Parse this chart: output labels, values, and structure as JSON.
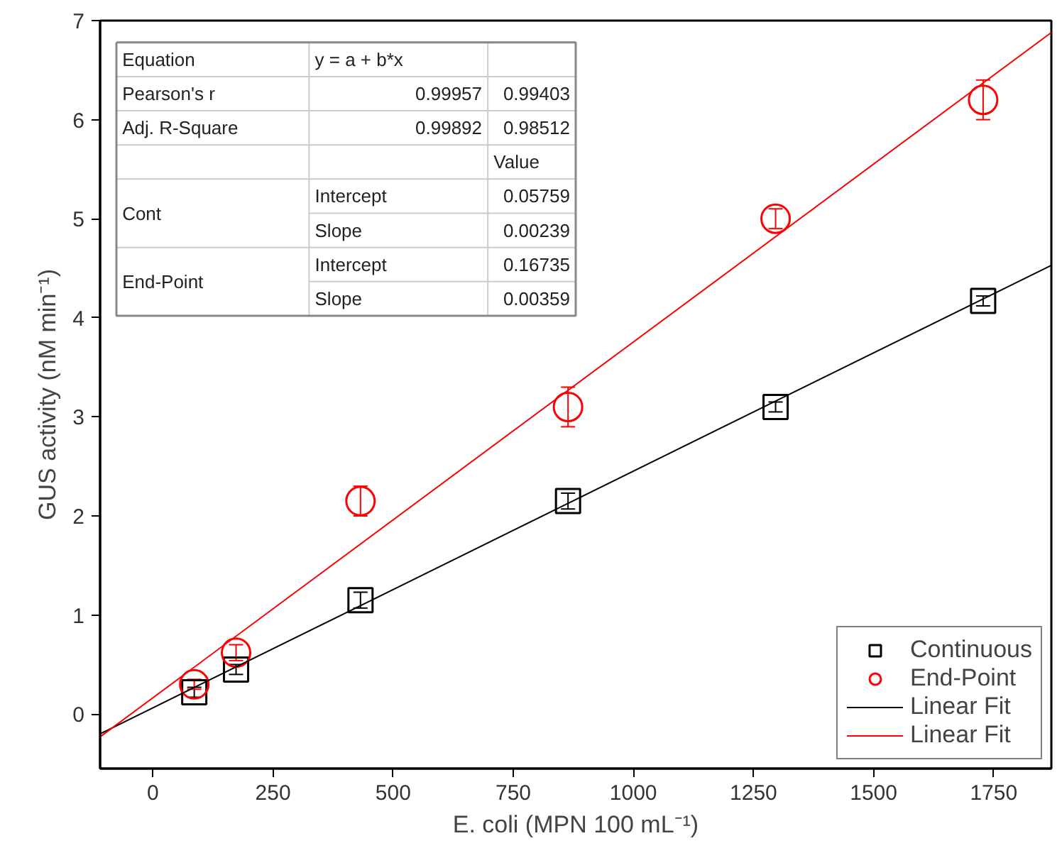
{
  "chart_data": {
    "type": "scatter",
    "xlabel": "E. coli (MPN 100 mL⁻¹)",
    "ylabel": "GUS activity (nM min⁻¹)",
    "xlim": [
      -110,
      1870
    ],
    "ylim": [
      -0.55,
      7
    ],
    "xticks": [
      0,
      250,
      500,
      750,
      1000,
      1250,
      1500,
      1750
    ],
    "yticks": [
      0,
      1,
      2,
      3,
      4,
      5,
      6,
      7
    ],
    "grid": false,
    "legend": "bottom right",
    "series": [
      {
        "name": "Continuous",
        "marker": "square",
        "color": "#000000",
        "x": [
          86,
          173,
          432,
          864,
          1296,
          1728
        ],
        "values": [
          0.22,
          0.45,
          1.15,
          2.15,
          3.1,
          4.17
        ],
        "errors": [
          0.05,
          0.05,
          0.08,
          0.08,
          0.05,
          0.05
        ]
      },
      {
        "name": "End-Point",
        "marker": "circle",
        "color": "#ff0000",
        "x": [
          86,
          173,
          432,
          864,
          1296,
          1728
        ],
        "values": [
          0.3,
          0.62,
          2.15,
          3.1,
          5.0,
          6.2
        ],
        "errors": [
          0.05,
          0.08,
          0.15,
          0.2,
          0.1,
          0.2
        ]
      },
      {
        "name": "Linear Fit",
        "type": "line",
        "color": "#000000",
        "x": [
          -110,
          1870
        ],
        "values": [
          -0.2,
          4.53
        ]
      },
      {
        "name": "Linear Fit",
        "type": "line",
        "color": "#ff0000",
        "x": [
          -110,
          1870
        ],
        "values": [
          -0.23,
          6.88
        ]
      }
    ],
    "annotations": [
      "Equation",
      "y = a + b*x",
      "Pearson's r",
      "0.99957",
      "0.99403",
      "Adj. R-Square",
      "0.99892",
      "0.98512",
      "Value",
      "Cont",
      "Intercept",
      "0.05759",
      "Slope",
      "0.00239",
      "End-Point",
      "Intercept",
      "0.16735",
      "Slope",
      "0.00359"
    ]
  }
}
